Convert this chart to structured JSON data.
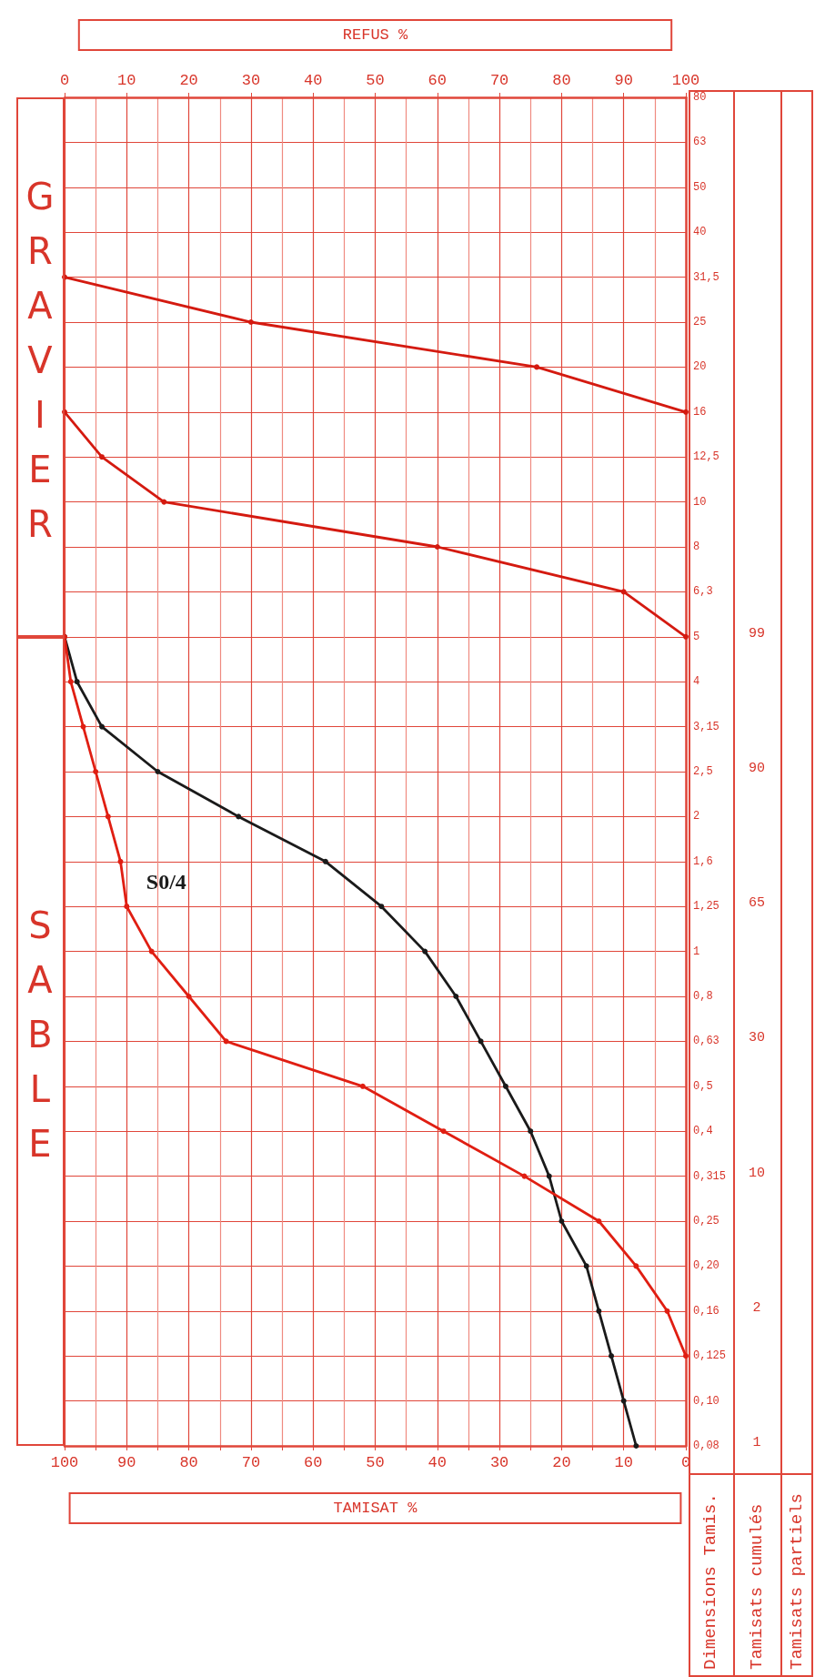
{
  "chart_data": {
    "type": "line",
    "orientation": "horizontal",
    "categories": [
      "80",
      "63",
      "50",
      "40",
      "31,5",
      "25",
      "20",
      "16",
      "12,5",
      "10",
      "8",
      "6,3",
      "5",
      "4",
      "3,15",
      "2,5",
      "2",
      "1,6",
      "1,25",
      "1",
      "0,8",
      "0,63",
      "0,5",
      "0,4",
      "0,315",
      "0,25",
      "0,20",
      "0,16",
      "0,125",
      "0,10",
      "0,08"
    ],
    "series": [
      {
        "name": "S0/4",
        "color": "#1a1a1a",
        "values": [
          null,
          null,
          null,
          null,
          null,
          null,
          null,
          null,
          null,
          null,
          null,
          null,
          100,
          98,
          94,
          85,
          72,
          58,
          49,
          42,
          37,
          33,
          29,
          25,
          22,
          20,
          16,
          14,
          12,
          10,
          8
        ]
      },
      {
        "color": "#e01e12",
        "values": [
          null,
          null,
          null,
          null,
          null,
          null,
          null,
          null,
          null,
          null,
          null,
          null,
          100,
          99,
          97,
          95,
          93,
          91,
          90,
          86,
          80,
          74,
          52,
          39,
          26,
          14,
          8,
          3,
          0,
          null,
          null
        ]
      },
      {
        "color": "#d41a10",
        "values": [
          null,
          null,
          null,
          null,
          null,
          null,
          null,
          100,
          94,
          84,
          40,
          10,
          0,
          null,
          null,
          null,
          null,
          null,
          null,
          null,
          null,
          null,
          null,
          null,
          null,
          null,
          null,
          null,
          null,
          null,
          null
        ]
      },
      {
        "color": "#d41a10",
        "values": [
          null,
          null,
          null,
          null,
          100,
          70,
          24,
          0,
          null,
          null,
          null,
          null,
          null,
          null,
          null,
          null,
          null,
          null,
          null,
          null,
          null,
          null,
          null,
          null,
          null,
          null,
          null,
          null,
          null,
          null,
          null
        ]
      }
    ],
    "xlabel": "TAMISAT %",
    "x2label": "REFUS %",
    "xlim": [
      100,
      0
    ],
    "xticks": [
      0,
      {
        "value": 5,
        "label": null
      },
      10,
      {
        "value": 15,
        "label": null
      },
      20,
      {
        "value": 25,
        "label": null
      },
      30,
      {
        "value": 35,
        "label": null
      },
      40,
      {
        "value": 45,
        "label": null
      },
      50,
      {
        "value": 55,
        "label": null
      },
      60,
      {
        "value": 65,
        "label": null
      },
      70,
      {
        "value": 75,
        "label": null
      },
      80,
      {
        "value": 85,
        "label": null
      },
      90,
      {
        "value": 95,
        "label": null
      },
      100
    ],
    "x2lim": [
      0,
      100
    ],
    "x2ticks": [
      0,
      10,
      20,
      30,
      40,
      50,
      60,
      70,
      80,
      90,
      100
    ],
    "grid": true,
    "marker": "circle",
    "line_style": "solid",
    "annotations": [
      "SABLE",
      "GRAVIER",
      "Dimensions Tamis.",
      "Tamisats cumulés",
      "Tamisats partiels",
      "1",
      "2",
      "10",
      "30",
      "65",
      "90",
      "99"
    ]
  }
}
